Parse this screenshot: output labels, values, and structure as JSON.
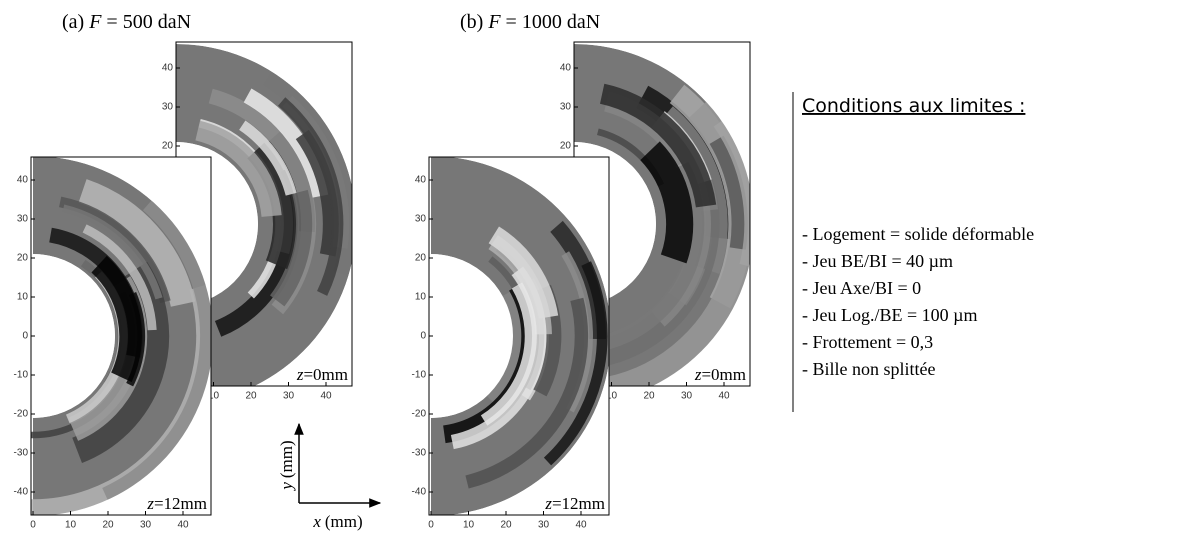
{
  "panels": [
    {
      "title": {
        "label": "(a)",
        "symbol": "F",
        "value": "= 500 daN"
      },
      "plots": [
        {
          "z_symbol": "z",
          "z_value": "=0mm",
          "yticks": [
            40,
            30,
            20
          ],
          "xticks": [
            10,
            20,
            30,
            40
          ]
        },
        {
          "z_symbol": "z",
          "z_value": "=12mm",
          "yticks": [
            40,
            30,
            20,
            10,
            0,
            -10,
            -20,
            -30,
            -40
          ],
          "xticks": [
            0,
            10,
            20,
            30,
            40
          ]
        }
      ]
    },
    {
      "title": {
        "label": "(b)",
        "symbol": "F",
        "value": "= 1000 daN"
      },
      "plots": [
        {
          "z_symbol": "z",
          "z_value": "=0mm",
          "yticks": [
            40,
            30,
            20
          ],
          "xticks": [
            10,
            20,
            30,
            40
          ]
        },
        {
          "z_symbol": "z",
          "z_value": "=12mm",
          "yticks": [
            40,
            30,
            20,
            10,
            0,
            -10,
            -20,
            -30,
            -40
          ],
          "xticks": [
            0,
            10,
            20,
            30,
            40
          ]
        }
      ]
    }
  ],
  "axes_key": {
    "y_symbol": "y",
    "y_unit": "(mm)",
    "x_symbol": "x",
    "x_unit": "(mm)"
  },
  "conditions": {
    "title": "Conditions aux limites :",
    "items": [
      "- Logement = solide déformable",
      "- Jeu BE/BI = 40 µm",
      "- Jeu Axe/BI = 0",
      "- Jeu Log./BE = 100 µm",
      "- Frottement = 0,3",
      "- Bille non splittée"
    ]
  }
}
